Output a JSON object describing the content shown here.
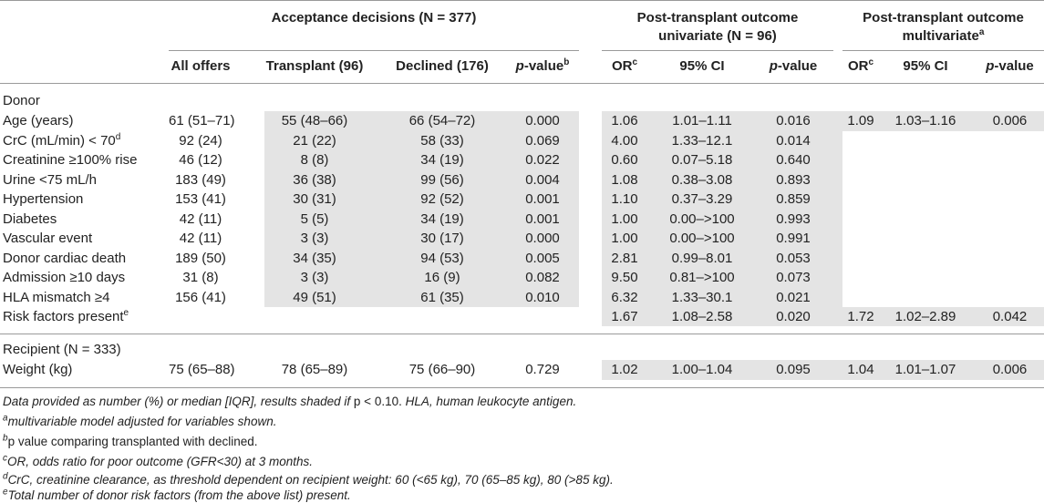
{
  "group_headers": {
    "acceptance": "Acceptance decisions (N = 377)",
    "univariate_line1": "Post-transplant outcome",
    "univariate_line2": "univariate (N = 96)",
    "multivariate_line1": "Post-transplant outcome",
    "multivariate_line2": "multivariate",
    "multivariate_sup": "a"
  },
  "col_headers": {
    "all_offers": "All offers",
    "transplant": "Transplant (96)",
    "declined": "Declined (176)",
    "pvalue_p": "p",
    "pvalue_rest": "-value",
    "pvalue_sup": "b",
    "or": "OR",
    "or_sup": "c",
    "ci": "95% CI",
    "or2": "OR",
    "or2_sup": "c",
    "ci2": "95% CI",
    "pv_uni_p": "p",
    "pv_uni_rest": "-value",
    "pv_multi_p": "p",
    "pv_multi_rest": "-value"
  },
  "sections": {
    "donor": "Donor",
    "recipient": "Recipient (N = 333)"
  },
  "rows": [
    {
      "label": "Age (years)",
      "sup": "",
      "all": "61 (51–71)",
      "tx": "55 (48–66)",
      "dec": "66 (54–72)",
      "p": "0.000",
      "or": "1.06",
      "ci": "1.01–1.11",
      "pu": "0.016",
      "or2": "1.09",
      "ci2": "1.03–1.16",
      "pm": "0.006"
    },
    {
      "label": "CrC (mL/min) < 70",
      "sup": "d",
      "all": "92 (24)",
      "tx": "21 (22)",
      "dec": "58 (33)",
      "p": "0.069",
      "or": "4.00",
      "ci": "1.33–12.1",
      "pu": "0.014",
      "or2": "",
      "ci2": "",
      "pm": ""
    },
    {
      "label": "Creatinine ≥100% rise",
      "sup": "",
      "all": "46 (12)",
      "tx": "8 (8)",
      "dec": "34 (19)",
      "p": "0.022",
      "or": "0.60",
      "ci": "0.07–5.18",
      "pu": "0.640",
      "or2": "",
      "ci2": "",
      "pm": ""
    },
    {
      "label": "Urine <75 mL/h",
      "sup": "",
      "all": "183 (49)",
      "tx": "36 (38)",
      "dec": "99 (56)",
      "p": "0.004",
      "or": "1.08",
      "ci": "0.38–3.08",
      "pu": "0.893",
      "or2": "",
      "ci2": "",
      "pm": ""
    },
    {
      "label": "Hypertension",
      "sup": "",
      "all": "153 (41)",
      "tx": "30 (31)",
      "dec": "92 (52)",
      "p": "0.001",
      "or": "1.10",
      "ci": "0.37–3.29",
      "pu": "0.859",
      "or2": "",
      "ci2": "",
      "pm": ""
    },
    {
      "label": "Diabetes",
      "sup": "",
      "all": "42 (11)",
      "tx": "5 (5)",
      "dec": "34 (19)",
      "p": "0.001",
      "or": "1.00",
      "ci": "0.00–>100",
      "pu": "0.993",
      "or2": "",
      "ci2": "",
      "pm": ""
    },
    {
      "label": "Vascular event",
      "sup": "",
      "all": "42 (11)",
      "tx": "3 (3)",
      "dec": "30 (17)",
      "p": "0.000",
      "or": "1.00",
      "ci": "0.00–>100",
      "pu": "0.991",
      "or2": "",
      "ci2": "",
      "pm": ""
    },
    {
      "label": "Donor cardiac death",
      "sup": "",
      "all": "189 (50)",
      "tx": "34 (35)",
      "dec": "94 (53)",
      "p": "0.005",
      "or": "2.81",
      "ci": "0.99–8.01",
      "pu": "0.053",
      "or2": "",
      "ci2": "",
      "pm": ""
    },
    {
      "label": "Admission ≥10 days",
      "sup": "",
      "all": "31 (8)",
      "tx": "3 (3)",
      "dec": "16 (9)",
      "p": "0.082",
      "or": "9.50",
      "ci": "0.81–>100",
      "pu": "0.073",
      "or2": "",
      "ci2": "",
      "pm": ""
    },
    {
      "label": "HLA mismatch ≥4",
      "sup": "",
      "all": "156 (41)",
      "tx": "49 (51)",
      "dec": "61 (35)",
      "p": "0.010",
      "or": "6.32",
      "ci": "1.33–30.1",
      "pu": "0.021",
      "or2": "",
      "ci2": "",
      "pm": ""
    },
    {
      "label": "Risk factors present",
      "sup": "e",
      "all": "",
      "tx": "",
      "dec": "",
      "p": "",
      "or": "1.67",
      "ci": "1.08–2.58",
      "pu": "0.020",
      "or2": "1.72",
      "ci2": "1.02–2.89",
      "pm": "0.042"
    }
  ],
  "recipient_row": {
    "label": "Weight (kg)",
    "all": "75 (65–88)",
    "tx": "78 (65–89)",
    "dec": "75 (66–90)",
    "p": "0.729",
    "or": "1.02",
    "ci": "1.00–1.04",
    "pu": "0.095",
    "or2": "1.04",
    "ci2": "1.01–1.07",
    "pm": "0.006"
  },
  "footnotes": {
    "main_a": "Data provided as number (%) or median [IQR], results shaded if ",
    "main_b": "p < 0.10.",
    "main_c": " HLA, human leukocyte antigen.",
    "a_sup": "a",
    "a_text": "multivariable model adjusted for variables shown.",
    "b_sup": "b",
    "b_text": "p value comparing transplanted with declined.",
    "c_sup": "c",
    "c_text": "OR, odds ratio for poor outcome (GFR<30) at 3 months.",
    "d_sup": "d",
    "d_text": "CrC, creatinine clearance, as threshold dependent on recipient weight: 60 (<65 kg), 70 (65–85 kg), 80 (>85 kg).",
    "e_sup": "e",
    "e_text": "Total number of donor risk factors (from the above list) present."
  }
}
